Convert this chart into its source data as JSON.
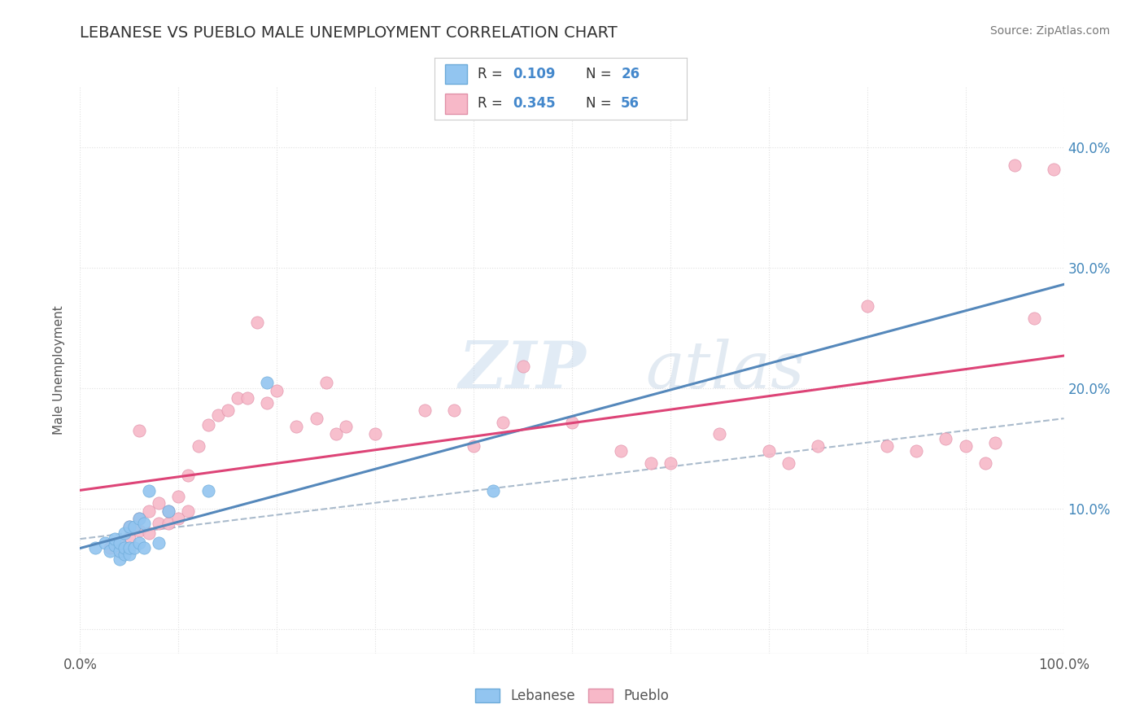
{
  "title": "LEBANESE VS PUEBLO MALE UNEMPLOYMENT CORRELATION CHART",
  "source": "Source: ZipAtlas.com",
  "ylabel": "Male Unemployment",
  "watermark_zip": "ZIP",
  "watermark_atlas": "atlas",
  "xlim": [
    0.0,
    1.0
  ],
  "ylim": [
    -0.02,
    0.45
  ],
  "xticks": [
    0.0,
    0.1,
    0.2,
    0.3,
    0.4,
    0.5,
    0.6,
    0.7,
    0.8,
    0.9,
    1.0
  ],
  "xticklabels_show": {
    "0": "0.0%",
    "10": "100.0%"
  },
  "yticks": [
    0.0,
    0.1,
    0.2,
    0.3,
    0.4
  ],
  "yticklabels": [
    "",
    "10.0%",
    "20.0%",
    "30.0%",
    "40.0%"
  ],
  "color_lebanese_fill": "#92C5F0",
  "color_lebanese_edge": "#6BAAD8",
  "color_pueblo_fill": "#F7B8C8",
  "color_pueblo_edge": "#E090A8",
  "color_line_lebanese": "#5588BB",
  "color_line_pueblo": "#DD4477",
  "color_dashed": "#AABBCC",
  "lebanese_x": [
    0.015,
    0.025,
    0.03,
    0.035,
    0.035,
    0.04,
    0.04,
    0.04,
    0.045,
    0.045,
    0.045,
    0.05,
    0.05,
    0.05,
    0.055,
    0.055,
    0.06,
    0.06,
    0.065,
    0.065,
    0.07,
    0.08,
    0.09,
    0.13,
    0.19,
    0.42
  ],
  "lebanese_y": [
    0.068,
    0.072,
    0.065,
    0.07,
    0.075,
    0.058,
    0.065,
    0.072,
    0.062,
    0.068,
    0.08,
    0.062,
    0.068,
    0.085,
    0.068,
    0.085,
    0.072,
    0.092,
    0.068,
    0.088,
    0.115,
    0.072,
    0.098,
    0.115,
    0.205,
    0.115
  ],
  "pueblo_x": [
    0.03,
    0.04,
    0.05,
    0.05,
    0.06,
    0.06,
    0.07,
    0.07,
    0.08,
    0.08,
    0.09,
    0.09,
    0.1,
    0.1,
    0.11,
    0.11,
    0.12,
    0.13,
    0.14,
    0.15,
    0.16,
    0.17,
    0.19,
    0.2,
    0.22,
    0.24,
    0.26,
    0.27,
    0.3,
    0.35,
    0.38,
    0.4,
    0.43,
    0.45,
    0.5,
    0.55,
    0.58,
    0.6,
    0.65,
    0.7,
    0.72,
    0.75,
    0.8,
    0.82,
    0.85,
    0.88,
    0.9,
    0.92,
    0.93,
    0.95,
    0.97,
    0.99,
    0.18,
    0.25,
    0.04,
    0.06
  ],
  "pueblo_y": [
    0.068,
    0.065,
    0.075,
    0.085,
    0.082,
    0.092,
    0.08,
    0.098,
    0.088,
    0.105,
    0.088,
    0.098,
    0.092,
    0.11,
    0.098,
    0.128,
    0.152,
    0.17,
    0.178,
    0.182,
    0.192,
    0.192,
    0.188,
    0.198,
    0.168,
    0.175,
    0.162,
    0.168,
    0.162,
    0.182,
    0.182,
    0.152,
    0.172,
    0.218,
    0.172,
    0.148,
    0.138,
    0.138,
    0.162,
    0.148,
    0.138,
    0.152,
    0.268,
    0.152,
    0.148,
    0.158,
    0.152,
    0.138,
    0.155,
    0.385,
    0.258,
    0.382,
    0.255,
    0.205,
    0.072,
    0.165
  ],
  "background_color": "#FFFFFF",
  "grid_color": "#E0E0E0",
  "title_color": "#333333",
  "axis_label_color": "#555555",
  "tick_color": "#4488BB",
  "source_color": "#777777"
}
